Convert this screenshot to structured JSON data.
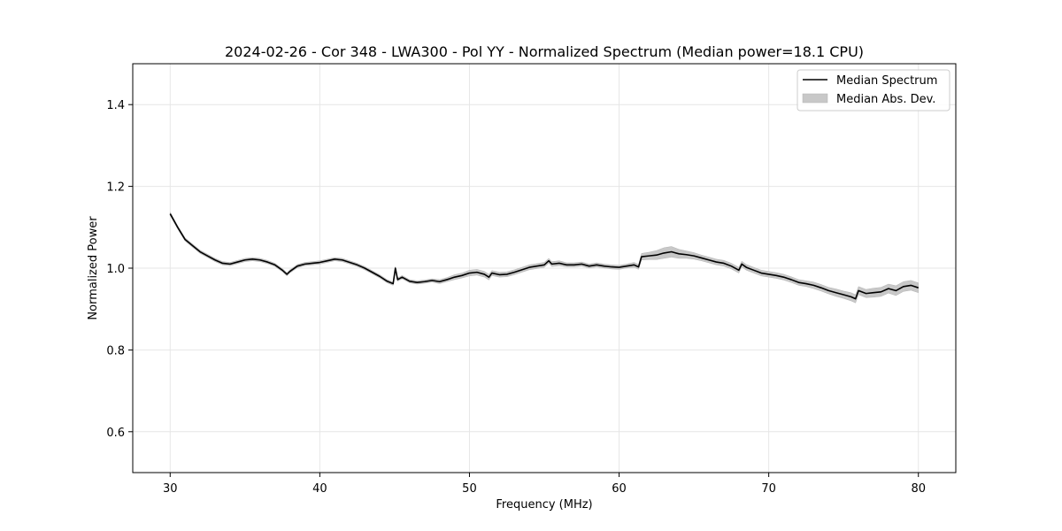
{
  "chart_data": {
    "type": "line",
    "title": "2024-02-26 - Cor 348 - LWA300 - Pol YY - Normalized Spectrum (Median power=18.1 CPU)",
    "xlabel": "Frequency (MHz)",
    "ylabel": "Normalized Power",
    "xlim": [
      27.5,
      82.5
    ],
    "ylim": [
      0.5,
      1.5
    ],
    "xticks": [
      30,
      40,
      50,
      60,
      70,
      80
    ],
    "yticks": [
      0.6,
      0.8,
      1.0,
      1.2,
      1.4
    ],
    "grid": true,
    "legend_position": "top-right",
    "colors": {
      "line": "#000000",
      "band": "#c8c8c8",
      "grid": "#e6e6e6"
    },
    "series": [
      {
        "name": "Median Spectrum",
        "kind": "line",
        "x": [
          30,
          30.5,
          31,
          31.5,
          32,
          32.5,
          33,
          33.5,
          34,
          34.5,
          35,
          35.5,
          36,
          36.5,
          37,
          37.5,
          37.8,
          38,
          38.5,
          39,
          39.5,
          40,
          40.5,
          41,
          41.5,
          42,
          42.5,
          43,
          43.5,
          44,
          44.5,
          44.9,
          45.05,
          45.2,
          45.5,
          46,
          46.5,
          47,
          47.5,
          48,
          48.5,
          49,
          49.5,
          50,
          50.5,
          51,
          51.3,
          51.5,
          52,
          52.5,
          53,
          53.5,
          54,
          54.5,
          55,
          55.3,
          55.5,
          56,
          56.5,
          57,
          57.5,
          58,
          58.5,
          59,
          59.5,
          60,
          60.5,
          61,
          61.3,
          61.5,
          62,
          62.5,
          63,
          63.5,
          64,
          64.5,
          65,
          65.5,
          66,
          66.5,
          67,
          67.5,
          68,
          68.2,
          68.5,
          69,
          69.5,
          70,
          70.5,
          71,
          71.5,
          72,
          72.5,
          73,
          73.5,
          74,
          74.5,
          75,
          75.5,
          75.8,
          76,
          76.5,
          77,
          77.5,
          78,
          78.5,
          79,
          79.5,
          80
        ],
        "y": [
          1.133,
          1.1,
          1.07,
          1.055,
          1.04,
          1.03,
          1.02,
          1.012,
          1.01,
          1.015,
          1.02,
          1.022,
          1.02,
          1.015,
          1.008,
          0.995,
          0.985,
          0.992,
          1.005,
          1.01,
          1.012,
          1.014,
          1.018,
          1.022,
          1.02,
          1.014,
          1.008,
          1.0,
          0.99,
          0.98,
          0.968,
          0.962,
          1.0,
          0.972,
          0.978,
          0.968,
          0.965,
          0.967,
          0.97,
          0.967,
          0.972,
          0.978,
          0.982,
          0.988,
          0.99,
          0.985,
          0.978,
          0.988,
          0.984,
          0.985,
          0.99,
          0.996,
          1.002,
          1.005,
          1.008,
          1.018,
          1.01,
          1.012,
          1.008,
          1.008,
          1.01,
          1.005,
          1.008,
          1.005,
          1.003,
          1.002,
          1.005,
          1.008,
          1.003,
          1.028,
          1.03,
          1.032,
          1.037,
          1.04,
          1.035,
          1.033,
          1.03,
          1.025,
          1.02,
          1.015,
          1.012,
          1.005,
          0.995,
          1.01,
          1.002,
          0.995,
          0.988,
          0.985,
          0.982,
          0.978,
          0.972,
          0.965,
          0.962,
          0.958,
          0.952,
          0.945,
          0.94,
          0.935,
          0.93,
          0.925,
          0.945,
          0.938,
          0.94,
          0.942,
          0.95,
          0.945,
          0.955,
          0.958,
          0.952
        ]
      },
      {
        "name": "Median Abs. Dev.",
        "kind": "band",
        "half_width": [
          0.004,
          0.004,
          0.004,
          0.004,
          0.004,
          0.004,
          0.004,
          0.004,
          0.004,
          0.004,
          0.004,
          0.004,
          0.004,
          0.004,
          0.004,
          0.004,
          0.004,
          0.004,
          0.004,
          0.004,
          0.004,
          0.004,
          0.004,
          0.004,
          0.004,
          0.004,
          0.004,
          0.004,
          0.004,
          0.004,
          0.004,
          0.004,
          0.004,
          0.004,
          0.004,
          0.004,
          0.004,
          0.004,
          0.004,
          0.005,
          0.005,
          0.006,
          0.006,
          0.007,
          0.007,
          0.007,
          0.007,
          0.006,
          0.006,
          0.006,
          0.006,
          0.006,
          0.006,
          0.006,
          0.006,
          0.006,
          0.006,
          0.006,
          0.005,
          0.005,
          0.005,
          0.005,
          0.005,
          0.005,
          0.005,
          0.005,
          0.005,
          0.006,
          0.006,
          0.008,
          0.009,
          0.011,
          0.013,
          0.013,
          0.011,
          0.009,
          0.008,
          0.007,
          0.007,
          0.007,
          0.007,
          0.007,
          0.007,
          0.007,
          0.007,
          0.007,
          0.007,
          0.007,
          0.007,
          0.007,
          0.007,
          0.007,
          0.007,
          0.008,
          0.008,
          0.008,
          0.009,
          0.009,
          0.01,
          0.01,
          0.01,
          0.01,
          0.011,
          0.011,
          0.011,
          0.012,
          0.012,
          0.012,
          0.012
        ]
      }
    ]
  }
}
